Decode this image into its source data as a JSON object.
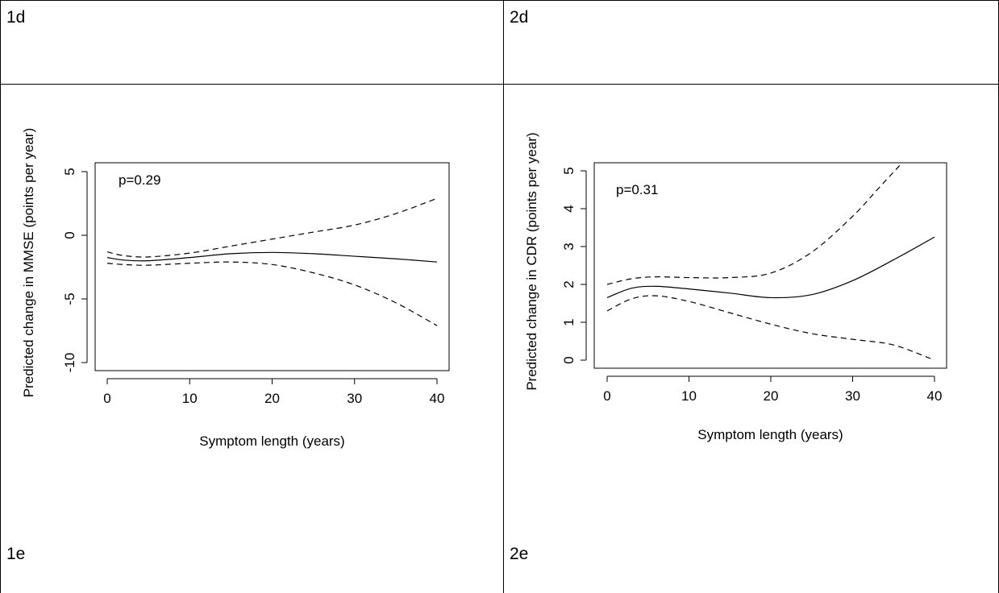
{
  "table": {
    "cell_labels": {
      "top_left": "1d",
      "top_right": "2d",
      "bottom_left": "1e",
      "bottom_right": "2e"
    }
  },
  "chart_data": [
    {
      "type": "line",
      "annotation": "p=0.29",
      "xlabel": "Symptom length (years)",
      "ylabel": "Predicted change in MMSE (points per year)",
      "xlim": [
        0,
        40
      ],
      "ylim": [
        -10,
        5
      ],
      "xticks": [
        0,
        10,
        20,
        30,
        40
      ],
      "yticks": [
        -10,
        -5,
        0,
        5
      ],
      "x_tick_labels": [
        "0",
        "10",
        "20",
        "30",
        "40"
      ],
      "y_tick_labels": [
        "-10",
        "-5",
        "0",
        "5"
      ],
      "series": [
        {
          "role": "estimate",
          "style": "solid",
          "x": [
            0,
            2,
            5,
            10,
            15,
            20,
            25,
            30,
            35,
            40
          ],
          "y": [
            -1.75,
            -1.95,
            -2.0,
            -1.75,
            -1.45,
            -1.35,
            -1.45,
            -1.65,
            -1.85,
            -2.1
          ]
        },
        {
          "role": "upper",
          "style": "dashed",
          "x": [
            0,
            2,
            5,
            10,
            15,
            20,
            25,
            30,
            35,
            40
          ],
          "y": [
            -1.3,
            -1.6,
            -1.7,
            -1.4,
            -0.85,
            -0.3,
            0.25,
            0.8,
            1.7,
            2.9
          ]
        },
        {
          "role": "lower",
          "style": "dashed",
          "x": [
            0,
            2,
            5,
            10,
            15,
            20,
            25,
            30,
            35,
            40
          ],
          "y": [
            -2.2,
            -2.3,
            -2.35,
            -2.2,
            -2.1,
            -2.3,
            -2.95,
            -3.9,
            -5.3,
            -7.1
          ]
        }
      ]
    },
    {
      "type": "line",
      "annotation": "p=0.31",
      "xlabel": "Symptom length (years)",
      "ylabel": "Predicted change in CDR (points per year)",
      "xlim": [
        0,
        40
      ],
      "ylim": [
        0,
        5
      ],
      "xticks": [
        0,
        10,
        20,
        30,
        40
      ],
      "yticks": [
        0,
        1,
        2,
        3,
        4,
        5
      ],
      "x_tick_labels": [
        "0",
        "10",
        "20",
        "30",
        "40"
      ],
      "y_tick_labels": [
        "0",
        "1",
        "2",
        "3",
        "4",
        "5"
      ],
      "series": [
        {
          "role": "estimate",
          "style": "solid",
          "x": [
            0,
            3,
            6,
            10,
            15,
            20,
            25,
            30,
            35,
            40
          ],
          "y": [
            1.65,
            1.9,
            1.95,
            1.88,
            1.77,
            1.65,
            1.73,
            2.1,
            2.65,
            3.25
          ]
        },
        {
          "role": "upper",
          "style": "dashed",
          "x": [
            0,
            3,
            6,
            10,
            15,
            20,
            25,
            30,
            33,
            36
          ],
          "y": [
            2.0,
            2.15,
            2.2,
            2.18,
            2.18,
            2.3,
            2.85,
            3.8,
            4.5,
            5.2
          ]
        },
        {
          "role": "lower",
          "style": "dashed",
          "x": [
            0,
            3,
            6,
            10,
            15,
            20,
            25,
            30,
            35,
            40
          ],
          "y": [
            1.3,
            1.62,
            1.7,
            1.55,
            1.25,
            0.95,
            0.7,
            0.55,
            0.4,
            0.0
          ]
        }
      ]
    }
  ]
}
